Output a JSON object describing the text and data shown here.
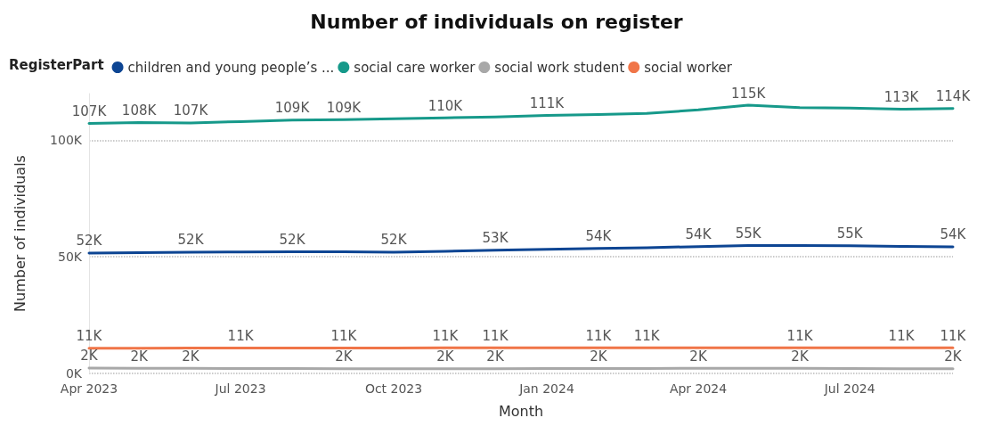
{
  "chart_data": {
    "type": "line",
    "title": "Number of individuals on register",
    "xlabel": "Month",
    "ylabel": "Number of individuals",
    "legend_title": "RegisterPart",
    "xlim": [
      "2023-04",
      "2024-09"
    ],
    "x": [
      "2023-04",
      "2023-05",
      "2023-06",
      "2023-07",
      "2023-08",
      "2023-09",
      "2023-10",
      "2023-11",
      "2023-12",
      "2024-01",
      "2024-02",
      "2024-03",
      "2024-04",
      "2024-05",
      "2024-06",
      "2024-07",
      "2024-08",
      "2024-09"
    ],
    "xticks": [
      {
        "value": "2023-04",
        "label": "Apr 2023"
      },
      {
        "value": "2023-07",
        "label": "Jul 2023"
      },
      {
        "value": "2023-10",
        "label": "Oct 2023"
      },
      {
        "value": "2024-01",
        "label": "Jan 2024"
      },
      {
        "value": "2024-04",
        "label": "Apr 2024"
      },
      {
        "value": "2024-07",
        "label": "Jul 2024"
      }
    ],
    "series": [
      {
        "name": "children and young people’s ...",
        "color": "#0d4593",
        "values": [
          51600,
          51800,
          52000,
          52100,
          52200,
          52200,
          52000,
          52400,
          52800,
          53200,
          53600,
          53900,
          54400,
          54800,
          54800,
          54700,
          54500,
          54300
        ],
        "value_labels": [
          "52K",
          null,
          "52K",
          null,
          "52K",
          null,
          "52K",
          null,
          "53K",
          null,
          "54K",
          null,
          "54K",
          "55K",
          null,
          "55K",
          null,
          "54K"
        ]
      },
      {
        "name": "social care worker",
        "color": "#16998a",
        "values": [
          107200,
          107600,
          107400,
          108000,
          108600,
          108800,
          109200,
          109600,
          110000,
          110600,
          111000,
          111500,
          113000,
          115000,
          114000,
          113800,
          113300,
          113600
        ],
        "value_labels": [
          "107K",
          "108K",
          "107K",
          null,
          "109K",
          "109K",
          null,
          "110K",
          null,
          "111K",
          null,
          null,
          null,
          "115K",
          null,
          null,
          "113K",
          "114K"
        ]
      },
      {
        "name": "social work student",
        "color": "#a8a8a8",
        "values": [
          2300,
          2200,
          2200,
          2100,
          2100,
          2000,
          2000,
          2000,
          2000,
          2100,
          2100,
          2100,
          2200,
          2200,
          2200,
          2100,
          2000,
          2000
        ],
        "value_labels": [
          "2K",
          "2K",
          "2K",
          null,
          null,
          "2K",
          null,
          "2K",
          "2K",
          null,
          "2K",
          null,
          "2K",
          null,
          "2K",
          null,
          null,
          "2K"
        ]
      },
      {
        "name": "social worker",
        "color": "#f07548",
        "values": [
          10800,
          10800,
          10900,
          10900,
          10900,
          10900,
          10900,
          11000,
          11000,
          11000,
          11000,
          11000,
          11000,
          11000,
          11000,
          11000,
          11000,
          11000
        ],
        "value_labels": [
          "11K",
          null,
          null,
          "11K",
          null,
          "11K",
          null,
          "11K",
          "11K",
          null,
          "11K",
          "11K",
          null,
          null,
          "11K",
          null,
          "11K",
          "11K"
        ]
      }
    ],
    "ylim": [
      0,
      120000
    ],
    "yticks": [
      {
        "value": 0,
        "label": "0K"
      },
      {
        "value": 50000,
        "label": "50K"
      },
      {
        "value": 100000,
        "label": "100K"
      }
    ],
    "grid": "y",
    "legend": "top left",
    "marker": "none",
    "line_style": "solid"
  }
}
